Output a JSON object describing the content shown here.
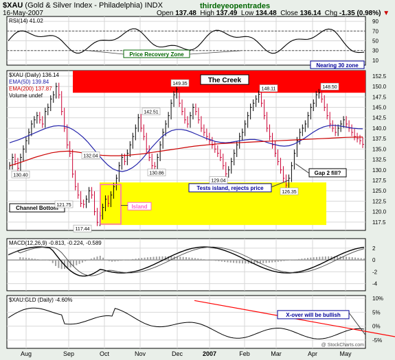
{
  "header": {
    "symbol": "$XAU",
    "name": "(Gold & Silver Index - Philadelphia)",
    "exchange": "INDX",
    "date": "16-May-2007",
    "brand": "thirdeyeopentrades",
    "open_label": "Open",
    "open": "137.48",
    "high_label": "High",
    "high": "137.49",
    "low_label": "Low",
    "low": "134.48",
    "close_label": "Close",
    "close": "136.14",
    "chg_label": "Chg",
    "chg": "-1.35 (0.98%)",
    "watermark": "@ StockCharts.com"
  },
  "colors": {
    "panel_bg": "#ffffff",
    "frame": "#000000",
    "grid": "#d7d7d7",
    "creek_band": "#ff0000",
    "channel_box": "#ffff00",
    "rsi_line": "#000000",
    "ema50": "#2222aa",
    "ema200": "#cc0000",
    "bar_up": "#000000",
    "bar_down": "#cc0033",
    "island_box": "#ff66cc",
    "macd_hist": "#a0a0a0",
    "label_green": "#006600",
    "label_blue": "#000099",
    "trendline": "#ff0000"
  },
  "rsi_panel": {
    "title": "RSI(14) 41.02",
    "annotation_price_recovery": "Price Recovery Zone",
    "annotation_nearing": "Nearing 30 zone"
  },
  "price_panel": {
    "legend_title": "$XAU (Daily) 136.14",
    "legend_ema50": "EMA(50) 139.84",
    "legend_ema200": "EMA(200) 137.87",
    "legend_volume": "Volume undef",
    "annotation_creek": "The Creek",
    "annotation_channel": "Channel Bottom",
    "annotation_island": "Island",
    "annotation_tests": "Tests island, rejects price",
    "annotation_gap": "Gap 2 fill?",
    "price_labels": [
      "130.40",
      "132.04",
      "121.75",
      "117.44",
      "142.51",
      "130.86",
      "149.35",
      "129.04",
      "148.11",
      "126.35",
      "148.50"
    ]
  },
  "macd_panel": {
    "title": "MACD(12,26,9) -0.813, -0.224, -0.589"
  },
  "ratio_panel": {
    "title": "$XAU:GLD (Daily) -4.60%",
    "annotation_xover": "X-over will be bullish"
  },
  "x_axis": {
    "months": [
      "Aug",
      "Sep",
      "Oct",
      "Nov",
      "Dec",
      "2007",
      "Feb",
      "Mar",
      "Apr",
      "May"
    ]
  },
  "chart_data": [
    {
      "type": "line",
      "title": "RSI(14) 41.02",
      "y_ticks": [
        10,
        30,
        50,
        70,
        90
      ],
      "ylim": [
        0,
        100
      ],
      "reference_levels": [
        30,
        70
      ],
      "grid": true
    },
    {
      "type": "line",
      "title": "$XAU (Daily) 136.14",
      "y_ticks": [
        117.5,
        120.0,
        122.5,
        125.0,
        127.5,
        130.0,
        132.5,
        135.0,
        137.5,
        140.0,
        142.5,
        145.0,
        147.5,
        150.0,
        152.5
      ],
      "ylim": [
        115.5,
        153.8
      ],
      "bands": [
        {
          "label": "The Creek",
          "from": 148.5,
          "to": 153.8
        }
      ],
      "boxes": [
        {
          "label": "Channel Bottom",
          "price_from": 116.8,
          "price_to": 127.0
        }
      ],
      "series": [
        {
          "name": "$XAU (Daily) 136.14",
          "values": [
            131,
            133,
            132,
            130.4,
            133,
            135,
            137,
            139,
            141,
            142,
            143,
            142,
            141,
            144,
            145,
            147,
            148,
            150,
            148,
            144,
            140,
            136,
            134,
            129,
            126,
            124,
            122,
            121.75,
            123,
            125,
            124,
            120,
            117.44,
            119,
            121,
            123,
            122,
            124,
            126,
            128,
            131,
            133,
            132.04,
            134,
            136,
            138,
            140,
            142.51,
            140,
            138,
            135,
            133,
            131,
            130.86,
            133,
            136,
            139,
            141,
            143,
            146,
            148,
            149.35,
            146,
            144,
            142,
            141,
            143,
            145,
            144,
            142,
            140,
            139,
            138,
            137,
            136,
            135,
            134,
            133,
            131,
            129.04,
            130,
            132,
            134,
            136,
            138,
            139,
            141,
            143,
            145,
            146,
            147,
            148.11,
            146,
            143,
            140,
            138,
            136,
            134,
            132,
            130,
            128,
            126.35,
            128,
            131,
            134,
            137,
            139,
            140,
            141,
            143,
            145,
            146,
            148,
            148.5,
            147,
            145,
            143,
            141,
            140,
            139,
            140,
            141,
            142,
            141,
            140,
            139,
            138,
            137.5,
            137,
            136.14
          ]
        },
        {
          "name": "EMA(50) 139.84",
          "values": [
            136.5,
            136.9,
            137.3,
            137.8,
            138.3,
            138.8,
            139.3,
            139.8,
            140.2,
            140.5,
            140.6,
            140.5,
            140.2,
            139.6,
            138.8,
            137.8,
            136.6,
            135.2,
            133.8,
            132.4,
            131.2,
            130.3,
            129.8,
            129.6,
            129.9,
            130.5,
            131.4,
            132.6,
            134.0,
            135.4,
            136.7,
            137.9,
            138.8,
            139.4,
            139.7,
            139.7,
            139.5,
            139.1,
            138.6,
            138.1,
            137.6,
            137.2,
            136.8,
            136.6,
            136.5,
            136.6,
            136.8,
            137.0,
            137.2,
            137.3,
            137.3,
            137.1,
            136.8,
            136.4,
            136.1,
            135.8,
            135.7,
            135.8,
            136.2,
            136.8,
            137.5,
            138.3,
            139.1,
            139.8,
            140.3,
            140.6,
            140.7,
            140.6,
            140.4,
            140.2,
            140.0,
            139.9,
            139.84
          ]
        },
        {
          "name": "EMA(200) 137.87",
          "values": [
            131.0,
            131.6,
            132.3,
            133.0,
            133.6,
            134.1,
            134.4,
            134.5,
            134.3,
            134.0,
            133.7,
            133.5,
            133.4,
            133.4,
            133.5,
            133.7,
            133.9,
            134.2,
            134.5,
            134.8,
            135.1,
            135.4,
            135.7,
            135.9,
            136.1,
            136.3,
            136.4,
            136.5,
            136.6,
            136.7,
            136.8,
            136.9,
            137.0,
            137.1,
            137.2,
            137.3,
            137.4,
            137.5,
            137.6,
            137.7,
            137.8,
            137.85,
            137.87
          ]
        }
      ],
      "grid": true
    },
    {
      "type": "line",
      "title": "MACD(12,26,9) -0.813, -0.224, -0.589",
      "y_ticks": [
        -4,
        -2,
        0,
        2
      ],
      "ylim": [
        -5.2,
        3.6
      ],
      "grid": true
    },
    {
      "type": "line",
      "title": "$XAU:GLD (Daily) -4.60%",
      "y_ticks": [
        "-5%",
        "0%",
        "5%",
        "10%"
      ],
      "ylim": [
        -8,
        11
      ],
      "trendline_label": "X-over will be bullish",
      "grid": true
    }
  ]
}
